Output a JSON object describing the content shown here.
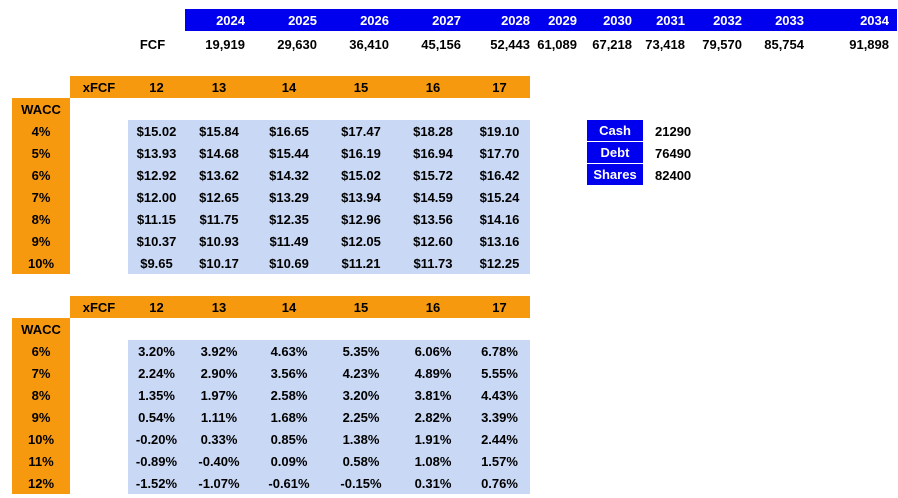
{
  "fcf": {
    "label": "FCF",
    "years": [
      "2024",
      "2025",
      "2026",
      "2027",
      "2028",
      "2029",
      "2030",
      "2031",
      "2032",
      "2033",
      "2034"
    ],
    "values": [
      "19,919",
      "29,630",
      "36,410",
      "45,156",
      "52,443",
      "61,089",
      "67,218",
      "73,418",
      "79,570",
      "85,754",
      "91,898"
    ]
  },
  "table1": {
    "corner_label": "xFCF",
    "row_header": "WACC",
    "multiples": [
      "12",
      "13",
      "14",
      "15",
      "16",
      "17"
    ],
    "rows": [
      {
        "wacc": "4%",
        "cells": [
          "$15.02",
          "$15.84",
          "$16.65",
          "$17.47",
          "$18.28",
          "$19.10"
        ]
      },
      {
        "wacc": "5%",
        "cells": [
          "$13.93",
          "$14.68",
          "$15.44",
          "$16.19",
          "$16.94",
          "$17.70"
        ]
      },
      {
        "wacc": "6%",
        "cells": [
          "$12.92",
          "$13.62",
          "$14.32",
          "$15.02",
          "$15.72",
          "$16.42"
        ]
      },
      {
        "wacc": "7%",
        "cells": [
          "$12.00",
          "$12.65",
          "$13.29",
          "$13.94",
          "$14.59",
          "$15.24"
        ]
      },
      {
        "wacc": "8%",
        "cells": [
          "$11.15",
          "$11.75",
          "$12.35",
          "$12.96",
          "$13.56",
          "$14.16"
        ]
      },
      {
        "wacc": "9%",
        "cells": [
          "$10.37",
          "$10.93",
          "$11.49",
          "$12.05",
          "$12.60",
          "$13.16"
        ]
      },
      {
        "wacc": "10%",
        "cells": [
          "$9.65",
          "$10.17",
          "$10.69",
          "$11.21",
          "$11.73",
          "$12.25"
        ]
      }
    ]
  },
  "table2": {
    "corner_label": "xFCF",
    "row_header": "WACC",
    "multiples": [
      "12",
      "13",
      "14",
      "15",
      "16",
      "17"
    ],
    "rows": [
      {
        "wacc": "6%",
        "cells": [
          "3.20%",
          "3.92%",
          "4.63%",
          "5.35%",
          "6.06%",
          "6.78%"
        ]
      },
      {
        "wacc": "7%",
        "cells": [
          "2.24%",
          "2.90%",
          "3.56%",
          "4.23%",
          "4.89%",
          "5.55%"
        ]
      },
      {
        "wacc": "8%",
        "cells": [
          "1.35%",
          "1.97%",
          "2.58%",
          "3.20%",
          "3.81%",
          "4.43%"
        ]
      },
      {
        "wacc": "9%",
        "cells": [
          "0.54%",
          "1.11%",
          "1.68%",
          "2.25%",
          "2.82%",
          "3.39%"
        ]
      },
      {
        "wacc": "10%",
        "cells": [
          "-0.20%",
          "0.33%",
          "0.85%",
          "1.38%",
          "1.91%",
          "2.44%"
        ]
      },
      {
        "wacc": "11%",
        "cells": [
          "-0.89%",
          "-0.40%",
          "0.09%",
          "0.58%",
          "1.08%",
          "1.57%"
        ]
      },
      {
        "wacc": "12%",
        "cells": [
          "-1.52%",
          "-1.07%",
          "-0.61%",
          "-0.15%",
          "0.31%",
          "0.76%"
        ]
      }
    ]
  },
  "balance": [
    {
      "label": "Cash",
      "value": "21290"
    },
    {
      "label": "Debt",
      "value": "76490"
    },
    {
      "label": "Shares",
      "value": "82400"
    }
  ],
  "colors": {
    "header_blue": "#0000ee",
    "header_orange": "#f6990e",
    "cell_light_blue": "#c9d8f4"
  }
}
